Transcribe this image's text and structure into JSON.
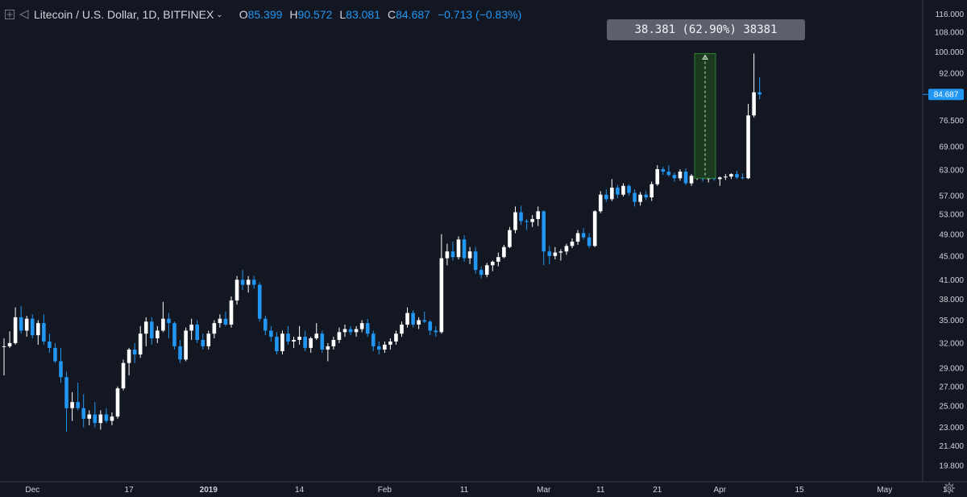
{
  "header": {
    "symbol_title": "Litecoin / U.S. Dollar, 1D, BITFINEX",
    "open_label": "O",
    "open_value": "85.399",
    "high_label": "H",
    "high_value": "90.572",
    "low_label": "L",
    "low_value": "83.081",
    "close_label": "C",
    "close_value": "84.687",
    "change": "−0.713 (−0.83%)"
  },
  "measure": {
    "text": "38.381 (62.90%) 38381",
    "from": 61.0,
    "to": 99.38
  },
  "colors": {
    "background": "#131722",
    "up": "#ffffff",
    "down": "#2196f3",
    "measure_fill": "#1b3a1f",
    "measure_border": "#2e7d32"
  },
  "chart_data": {
    "type": "candlestick",
    "y_scale": "log",
    "ylim": [
      18.6,
      118
    ],
    "y_ticks": [
      116.0,
      108.0,
      100.0,
      92.0,
      84.0,
      76.5,
      69.0,
      63.0,
      57.0,
      53.0,
      49.0,
      45.0,
      41.0,
      38.0,
      35.0,
      32.0,
      29.0,
      27.0,
      25.0,
      23.0,
      21.4,
      19.8
    ],
    "y_tick_labels": [
      "116.000",
      "108.000",
      "100.000",
      "92.000",
      "",
      "76.500",
      "69.000",
      "63.000",
      "57.000",
      "53.000",
      "49.000",
      "45.000",
      "41.000",
      "38.000",
      "35.000",
      "32.000",
      "29.000",
      "27.000",
      "25.000",
      "23.000",
      "21.400",
      "19.800"
    ],
    "last_price": 84.687,
    "last_price_label": "84.687",
    "x_tick_labels": [
      "Dec",
      "17",
      "2019",
      "14",
      "Feb",
      "11",
      "Mar",
      "11",
      "21",
      "Apr",
      "15",
      "May",
      "13"
    ],
    "x_tick_indices": [
      5,
      22,
      36,
      52,
      67,
      81,
      95,
      105,
      115,
      126,
      140,
      155,
      166
    ],
    "x_tick_bold": [
      false,
      false,
      true,
      false,
      false,
      false,
      false,
      false,
      false,
      false,
      false,
      false,
      false
    ],
    "candles": [
      [
        31.5,
        32.6,
        28.2,
        31.6
      ],
      [
        31.6,
        33.5,
        31.4,
        32.0
      ],
      [
        32.0,
        36.8,
        31.8,
        35.4
      ],
      [
        35.4,
        37.0,
        33.2,
        33.6
      ],
      [
        33.6,
        35.6,
        32.8,
        35.2
      ],
      [
        35.2,
        35.8,
        32.6,
        33.0
      ],
      [
        33.0,
        35.0,
        31.8,
        34.6
      ],
      [
        34.6,
        35.8,
        31.8,
        32.2
      ],
      [
        32.2,
        33.2,
        30.8,
        31.4
      ],
      [
        31.4,
        32.0,
        29.6,
        29.8
      ],
      [
        29.8,
        31.4,
        27.4,
        28.0
      ],
      [
        28.0,
        28.6,
        22.6,
        24.8
      ],
      [
        24.8,
        26.4,
        23.6,
        25.4
      ],
      [
        25.4,
        27.4,
        24.6,
        24.8
      ],
      [
        24.8,
        26.2,
        23.0,
        23.8
      ],
      [
        23.8,
        24.6,
        23.2,
        24.2
      ],
      [
        24.2,
        25.4,
        23.0,
        23.4
      ],
      [
        23.4,
        24.6,
        22.8,
        24.2
      ],
      [
        24.2,
        24.8,
        23.4,
        23.6
      ],
      [
        23.6,
        24.4,
        23.2,
        24.0
      ],
      [
        24.0,
        27.0,
        23.8,
        26.8
      ],
      [
        26.8,
        30.0,
        26.6,
        29.6
      ],
      [
        29.6,
        31.4,
        28.2,
        31.2
      ],
      [
        31.2,
        32.0,
        29.6,
        30.6
      ],
      [
        30.6,
        34.2,
        30.2,
        33.2
      ],
      [
        33.2,
        35.4,
        31.6,
        34.8
      ],
      [
        34.8,
        35.4,
        31.8,
        32.6
      ],
      [
        32.6,
        34.2,
        32.0,
        33.6
      ],
      [
        33.6,
        37.6,
        33.4,
        35.2
      ],
      [
        35.2,
        36.0,
        32.6,
        34.6
      ],
      [
        34.6,
        34.8,
        31.2,
        31.6
      ],
      [
        31.6,
        32.4,
        29.6,
        30.0
      ],
      [
        30.0,
        34.0,
        29.8,
        33.6
      ],
      [
        33.6,
        35.2,
        32.4,
        34.4
      ],
      [
        34.4,
        35.0,
        32.0,
        32.4
      ],
      [
        32.4,
        33.2,
        31.2,
        31.6
      ],
      [
        31.6,
        33.6,
        31.2,
        33.2
      ],
      [
        33.2,
        35.0,
        32.6,
        34.6
      ],
      [
        34.6,
        35.8,
        34.0,
        35.2
      ],
      [
        35.2,
        36.2,
        34.2,
        34.4
      ],
      [
        34.4,
        38.4,
        34.0,
        37.8
      ],
      [
        37.8,
        41.6,
        37.2,
        41.0
      ],
      [
        41.0,
        42.6,
        39.4,
        40.2
      ],
      [
        40.2,
        41.6,
        39.0,
        41.0
      ],
      [
        41.0,
        41.6,
        39.6,
        40.2
      ],
      [
        40.2,
        40.6,
        34.8,
        35.2
      ],
      [
        35.2,
        35.6,
        33.0,
        33.6
      ],
      [
        33.6,
        34.2,
        32.2,
        32.8
      ],
      [
        32.8,
        33.4,
        30.6,
        31.0
      ],
      [
        31.0,
        33.6,
        30.6,
        33.2
      ],
      [
        33.2,
        34.2,
        31.8,
        32.2
      ],
      [
        32.2,
        32.8,
        31.4,
        32.4
      ],
      [
        32.4,
        34.2,
        31.8,
        32.8
      ],
      [
        32.8,
        33.6,
        31.0,
        31.4
      ],
      [
        31.4,
        32.8,
        30.8,
        32.6
      ],
      [
        32.6,
        34.6,
        32.4,
        33.2
      ],
      [
        33.2,
        33.6,
        30.8,
        31.2
      ],
      [
        31.2,
        32.0,
        29.8,
        31.6
      ],
      [
        31.6,
        32.8,
        31.2,
        32.4
      ],
      [
        32.4,
        34.0,
        32.0,
        33.4
      ],
      [
        33.4,
        34.4,
        32.8,
        33.8
      ],
      [
        33.8,
        34.2,
        33.0,
        33.4
      ],
      [
        33.4,
        34.2,
        32.8,
        33.8
      ],
      [
        33.8,
        35.0,
        33.4,
        34.6
      ],
      [
        34.6,
        35.2,
        32.8,
        33.2
      ],
      [
        33.2,
        33.6,
        31.0,
        31.6
      ],
      [
        31.6,
        32.2,
        30.6,
        31.2
      ],
      [
        31.2,
        32.2,
        30.8,
        31.8
      ],
      [
        31.8,
        32.6,
        31.2,
        32.2
      ],
      [
        32.2,
        33.6,
        31.8,
        33.2
      ],
      [
        33.2,
        34.8,
        32.8,
        34.4
      ],
      [
        34.4,
        36.8,
        34.0,
        36.0
      ],
      [
        36.0,
        36.4,
        34.0,
        34.4
      ],
      [
        34.4,
        35.4,
        33.8,
        35.0
      ],
      [
        35.0,
        36.2,
        34.6,
        34.8
      ],
      [
        34.8,
        35.0,
        33.0,
        33.6
      ],
      [
        33.6,
        34.2,
        32.8,
        33.4
      ],
      [
        33.4,
        49.0,
        33.2,
        44.6
      ],
      [
        44.6,
        47.2,
        43.4,
        45.8
      ],
      [
        45.8,
        47.6,
        44.2,
        44.8
      ],
      [
        44.8,
        48.6,
        44.4,
        48.0
      ],
      [
        48.0,
        48.8,
        44.0,
        44.6
      ],
      [
        44.6,
        46.6,
        43.6,
        45.8
      ],
      [
        45.8,
        46.6,
        42.0,
        42.6
      ],
      [
        42.6,
        43.2,
        41.2,
        41.8
      ],
      [
        41.8,
        43.8,
        41.4,
        43.4
      ],
      [
        43.4,
        44.2,
        42.4,
        44.0
      ],
      [
        44.0,
        45.6,
        43.2,
        44.8
      ],
      [
        44.8,
        47.0,
        44.6,
        46.6
      ],
      [
        46.6,
        50.4,
        46.4,
        49.8
      ],
      [
        49.8,
        54.6,
        49.2,
        53.4
      ],
      [
        53.4,
        54.8,
        50.8,
        51.6
      ],
      [
        51.6,
        52.0,
        49.8,
        51.4
      ],
      [
        51.4,
        52.8,
        50.4,
        52.0
      ],
      [
        52.0,
        54.6,
        50.6,
        53.6
      ],
      [
        53.6,
        53.8,
        43.4,
        45.8
      ],
      [
        45.8,
        46.8,
        43.6,
        45.0
      ],
      [
        45.0,
        46.6,
        44.4,
        45.6
      ],
      [
        45.6,
        46.2,
        44.2,
        45.8
      ],
      [
        45.8,
        47.2,
        45.2,
        46.8
      ],
      [
        46.8,
        48.2,
        46.4,
        47.6
      ],
      [
        47.6,
        49.8,
        47.0,
        49.2
      ],
      [
        49.2,
        50.2,
        48.0,
        48.4
      ],
      [
        48.4,
        49.2,
        46.4,
        46.8
      ],
      [
        46.8,
        53.8,
        46.6,
        53.6
      ],
      [
        53.6,
        58.0,
        53.2,
        57.2
      ],
      [
        57.2,
        58.4,
        55.6,
        56.2
      ],
      [
        56.2,
        60.8,
        55.8,
        58.8
      ],
      [
        58.8,
        59.4,
        56.4,
        57.2
      ],
      [
        57.2,
        59.8,
        56.8,
        59.2
      ],
      [
        59.2,
        59.6,
        57.0,
        57.6
      ],
      [
        57.6,
        58.4,
        54.6,
        55.6
      ],
      [
        55.6,
        57.8,
        54.8,
        57.2
      ],
      [
        57.2,
        58.0,
        56.0,
        56.6
      ],
      [
        56.6,
        60.2,
        55.8,
        59.6
      ],
      [
        59.6,
        64.2,
        59.2,
        63.2
      ],
      [
        63.2,
        63.8,
        61.8,
        62.6
      ],
      [
        62.6,
        64.2,
        61.4,
        61.8
      ],
      [
        61.8,
        62.4,
        60.2,
        61.0
      ],
      [
        61.0,
        63.2,
        60.4,
        62.6
      ],
      [
        62.6,
        63.4,
        59.4,
        59.8
      ],
      [
        59.8,
        62.0,
        59.2,
        61.6
      ],
      [
        61.6,
        62.8,
        60.6,
        62.2
      ],
      [
        62.2,
        62.6,
        60.2,
        60.8
      ],
      [
        60.8,
        62.6,
        60.0,
        62.4
      ],
      [
        62.4,
        62.8,
        60.4,
        60.8
      ],
      [
        60.8,
        61.4,
        59.2,
        61.2
      ],
      [
        61.2,
        62.0,
        60.6,
        61.4
      ],
      [
        61.4,
        62.2,
        60.8,
        62.0
      ],
      [
        62.0,
        62.8,
        60.8,
        61.2
      ],
      [
        61.2,
        62.2,
        60.8,
        61.0
      ],
      [
        61.0,
        81.6,
        60.8,
        78.0
      ],
      [
        78.0,
        99.4,
        77.4,
        85.4
      ],
      [
        85.4,
        90.6,
        83.1,
        84.7
      ]
    ]
  }
}
